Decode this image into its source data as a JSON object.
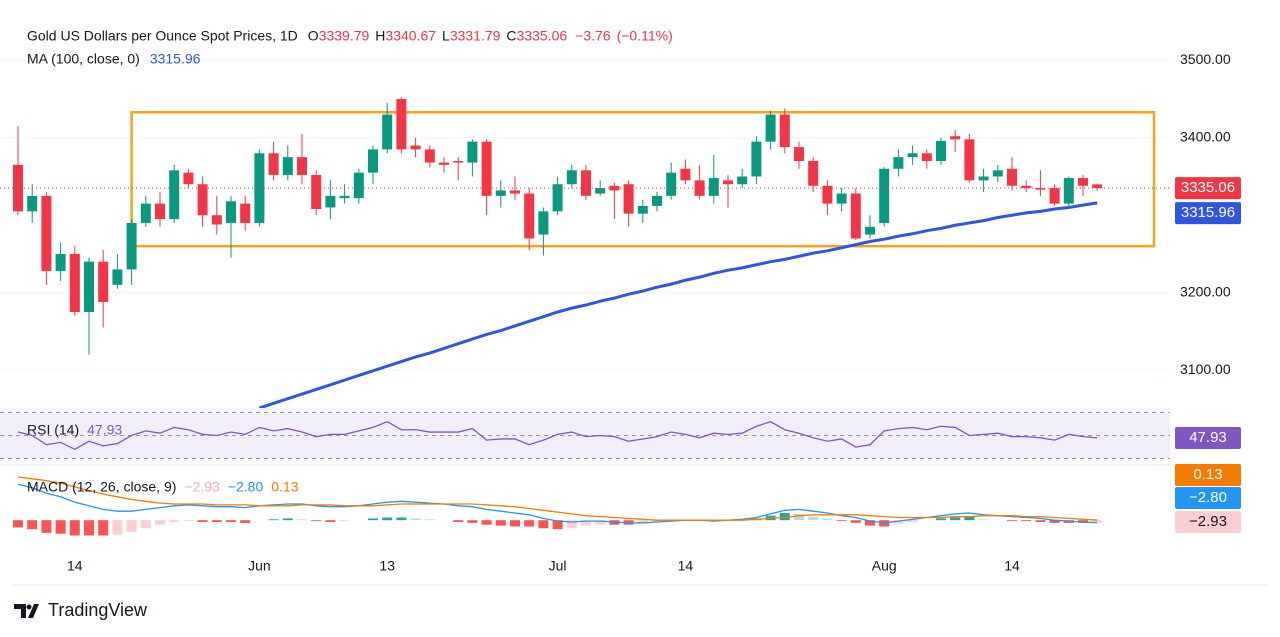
{
  "chart_data": [
    {
      "type": "candlestick",
      "title": "Gold US Dollars per Ounce Spot Prices, 1D",
      "ohlc_labels": [
        "O",
        "H",
        "L",
        "C"
      ],
      "change": {
        "value": -3.76,
        "label": "−3.76"
      },
      "change_pct": {
        "value": -0.11,
        "label": "(−0.11%)"
      },
      "categories": [
        null,
        null,
        null,
        null,
        "14",
        null,
        null,
        null,
        null,
        null,
        null,
        null,
        null,
        null,
        null,
        null,
        null,
        "Jun",
        null,
        null,
        null,
        null,
        null,
        null,
        null,
        null,
        "13",
        null,
        null,
        null,
        null,
        null,
        null,
        null,
        null,
        null,
        null,
        null,
        "Jul",
        null,
        null,
        null,
        null,
        null,
        null,
        null,
        null,
        "14",
        null,
        null,
        null,
        null,
        null,
        null,
        null,
        null,
        null,
        null,
        null,
        null,
        null,
        "Aug",
        null,
        null,
        null,
        null,
        null,
        null,
        null,
        null,
        "14",
        null,
        null,
        null,
        null,
        null,
        null
      ],
      "open": [
        3365,
        3305,
        3325,
        3228,
        3250,
        3175,
        3240,
        3210,
        3230,
        3290,
        3315,
        3295,
        3355,
        3340,
        3300,
        3290,
        3315,
        3290,
        3380,
        3352,
        3375,
        3352,
        3310,
        3322,
        3322,
        3355,
        3385,
        3450,
        3390,
        3385,
        3368,
        3370,
        3368,
        3395,
        3325,
        3332,
        3328,
        3275,
        3305,
        3340,
        3358,
        3328,
        3338,
        3340,
        3302,
        3312,
        3325,
        3360,
        3345,
        3325,
        3345,
        3340,
        3350,
        3395,
        3430,
        3388,
        3370,
        3338,
        3315,
        3328,
        3275,
        3290,
        3360,
        3375,
        3380,
        3370,
        3402,
        3398,
        3345,
        3350,
        3360,
        3338,
        3335,
        3335,
        3315,
        3348,
        3339.79
      ],
      "high": [
        3415,
        3340,
        3330,
        3265,
        3260,
        3245,
        3255,
        3250,
        3295,
        3325,
        3330,
        3365,
        3360,
        3350,
        3325,
        3325,
        3325,
        3385,
        3395,
        3390,
        3405,
        3358,
        3345,
        3340,
        3360,
        3390,
        3445,
        3452,
        3400,
        3390,
        3375,
        3375,
        3398,
        3398,
        3345,
        3350,
        3335,
        3310,
        3350,
        3365,
        3365,
        3345,
        3342,
        3345,
        3320,
        3330,
        3368,
        3372,
        3365,
        3378,
        3352,
        3360,
        3402,
        3435,
        3438,
        3395,
        3375,
        3345,
        3335,
        3335,
        3300,
        3362,
        3385,
        3390,
        3385,
        3400,
        3410,
        3405,
        3360,
        3365,
        3375,
        3345,
        3358,
        3340,
        3350,
        3352,
        3340.67
      ],
      "low": [
        3300,
        3290,
        3210,
        3215,
        3170,
        3120,
        3155,
        3205,
        3210,
        3285,
        3285,
        3290,
        3335,
        3285,
        3275,
        3245,
        3280,
        3285,
        3345,
        3345,
        3340,
        3300,
        3295,
        3315,
        3315,
        3340,
        3380,
        3380,
        3375,
        3362,
        3355,
        3345,
        3350,
        3300,
        3310,
        3320,
        3255,
        3248,
        3300,
        3335,
        3320,
        3325,
        3295,
        3285,
        3290,
        3305,
        3320,
        3340,
        3320,
        3315,
        3310,
        3335,
        3340,
        3385,
        3380,
        3360,
        3330,
        3300,
        3305,
        3268,
        3270,
        3285,
        3350,
        3365,
        3360,
        3365,
        3382,
        3342,
        3330,
        3343,
        3332,
        3330,
        3325,
        3312,
        3312,
        3325,
        3331.79
      ],
      "close": [
        3305,
        3325,
        3228,
        3250,
        3175,
        3240,
        3188,
        3230,
        3290,
        3315,
        3295,
        3358,
        3340,
        3300,
        3288,
        3318,
        3290,
        3380,
        3352,
        3375,
        3352,
        3308,
        3325,
        3325,
        3355,
        3385,
        3430,
        3385,
        3385,
        3368,
        3365,
        3368,
        3395,
        3325,
        3332,
        3328,
        3270,
        3305,
        3340,
        3358,
        3325,
        3335,
        3332,
        3302,
        3312,
        3325,
        3355,
        3345,
        3325,
        3348,
        3340,
        3350,
        3395,
        3430,
        3388,
        3370,
        3338,
        3315,
        3328,
        3270,
        3285,
        3360,
        3375,
        3380,
        3370,
        3396,
        3398,
        3345,
        3350,
        3358,
        3338,
        3335,
        3333,
        3315,
        3348,
        3338,
        3335.06
      ],
      "colors": {
        "up": "#089981",
        "down": "#f23645"
      },
      "ma": {
        "name": "MA (100, close, 0)",
        "color": "#2f56e0",
        "values": [
          null,
          null,
          null,
          null,
          null,
          null,
          null,
          null,
          null,
          null,
          null,
          null,
          null,
          null,
          null,
          null,
          null,
          3051,
          3057,
          3063,
          3069,
          3075,
          3081,
          3087,
          3093,
          3099,
          3105,
          3111,
          3117,
          3122,
          3128,
          3134,
          3140,
          3146,
          3151,
          3157,
          3163,
          3169,
          3175,
          3180,
          3184,
          3189,
          3193,
          3198,
          3202,
          3207,
          3211,
          3216,
          3220,
          3225,
          3229,
          3232,
          3236,
          3240,
          3243,
          3247,
          3251,
          3254,
          3258,
          3262,
          3266,
          3269,
          3273,
          3276,
          3280,
          3283,
          3287,
          3290,
          3293,
          3297,
          3300,
          3303,
          3305,
          3308,
          3310,
          3313,
          3315.96
        ]
      },
      "ylim": [
        3051,
        3556
      ],
      "yticks": [
        {
          "value": 3100,
          "label": "3100.00"
        },
        {
          "value": 3200,
          "label": "3200.00"
        },
        {
          "value": 3400,
          "label": "3400.00"
        },
        {
          "value": 3500,
          "label": "3500.00"
        }
      ],
      "grid": true,
      "price_line": true,
      "range_box": {
        "x": [
          8,
          80
        ],
        "y": [
          3260,
          3433
        ],
        "color": "#f5a31a"
      }
    },
    {
      "type": "line",
      "series": [
        {
          "name": "RSI (14)",
          "color": "#7e57c2",
          "values": [
            53,
            50,
            42,
            44,
            38,
            45,
            41,
            43,
            50,
            54,
            52,
            57,
            55,
            51,
            50,
            53,
            51,
            57,
            54,
            56,
            53,
            49,
            51,
            51,
            54,
            57,
            62,
            55,
            55,
            53,
            53,
            53,
            56,
            46,
            47,
            47,
            42,
            46,
            51,
            53,
            49,
            50,
            49,
            45,
            47,
            49,
            53,
            51,
            48,
            52,
            51,
            52,
            58,
            62,
            55,
            52,
            48,
            45,
            47,
            40,
            42,
            54,
            56,
            57,
            55,
            58,
            57,
            50,
            51,
            52,
            49,
            49,
            48,
            46,
            51,
            49,
            47.93
          ]
        }
      ],
      "ylim": [
        27,
        73
      ],
      "band": [
        30,
        70
      ],
      "midline": 50
    },
    {
      "type": "macd",
      "title": "MACD (12, 26, close, 9)",
      "series": [
        {
          "legend_label": "−2.93",
          "color": "#f7a9b0",
          "values": [
            -8,
            -10,
            -14,
            -15,
            -17,
            -17,
            -17,
            -16,
            -13,
            -9,
            -5,
            -2,
            -1,
            -2,
            -2,
            -2,
            -3,
            0,
            1,
            2,
            1,
            -1,
            -2,
            -1,
            0,
            2,
            3,
            3,
            2,
            1,
            0,
            -2,
            -3,
            -5,
            -6,
            -7,
            -7,
            -9,
            -10,
            -9,
            -6,
            -5,
            -5,
            -5,
            -4,
            -2,
            -1,
            0,
            0,
            -1,
            0,
            1,
            2,
            5,
            8,
            7,
            4,
            2,
            -1,
            -3,
            -6,
            -7,
            -4,
            -2,
            0,
            2,
            3,
            4,
            1,
            0,
            -1,
            -1,
            -2,
            -3,
            -3,
            -3,
            -2.93
          ]
        },
        {
          "legend_label": "−2.80",
          "color": "#2196f3",
          "values": [
            40,
            36,
            30,
            26,
            20,
            16,
            12,
            10,
            10,
            12,
            14,
            16,
            17,
            16,
            15,
            15,
            14,
            16,
            17,
            18,
            18,
            16,
            15,
            15,
            16,
            18,
            20,
            21,
            20,
            19,
            18,
            16,
            15,
            12,
            10,
            8,
            6,
            2,
            -1,
            -2,
            -1,
            -1,
            -2,
            -3,
            -3,
            -2,
            -1,
            0,
            0,
            -1,
            0,
            1,
            3,
            7,
            11,
            12,
            10,
            8,
            5,
            3,
            -1,
            -3,
            -1,
            1,
            3,
            5,
            7,
            8,
            6,
            5,
            4,
            3,
            2,
            0,
            -1,
            -2,
            -2.8
          ]
        },
        {
          "legend_label": "0.13",
          "color": "#f57c00",
          "values": [
            48,
            46,
            44,
            41,
            37,
            33,
            29,
            26,
            23,
            21,
            19,
            18,
            18,
            18,
            17,
            17,
            17,
            16,
            16,
            16,
            17,
            17,
            17,
            16,
            16,
            16,
            17,
            18,
            18,
            18,
            18,
            18,
            18,
            17,
            16,
            15,
            13,
            11,
            9,
            7,
            5,
            4,
            3,
            2,
            1,
            0,
            0,
            0,
            0,
            0,
            0,
            0,
            1,
            2,
            3,
            5,
            6,
            6,
            6,
            6,
            5,
            4,
            3,
            3,
            3,
            3,
            4,
            4,
            5,
            5,
            5,
            4,
            4,
            3,
            2,
            1,
            0.13
          ]
        }
      ],
      "ylim": [
        -22,
        58
      ]
    }
  ],
  "footer": {
    "brand": "TradingView"
  }
}
